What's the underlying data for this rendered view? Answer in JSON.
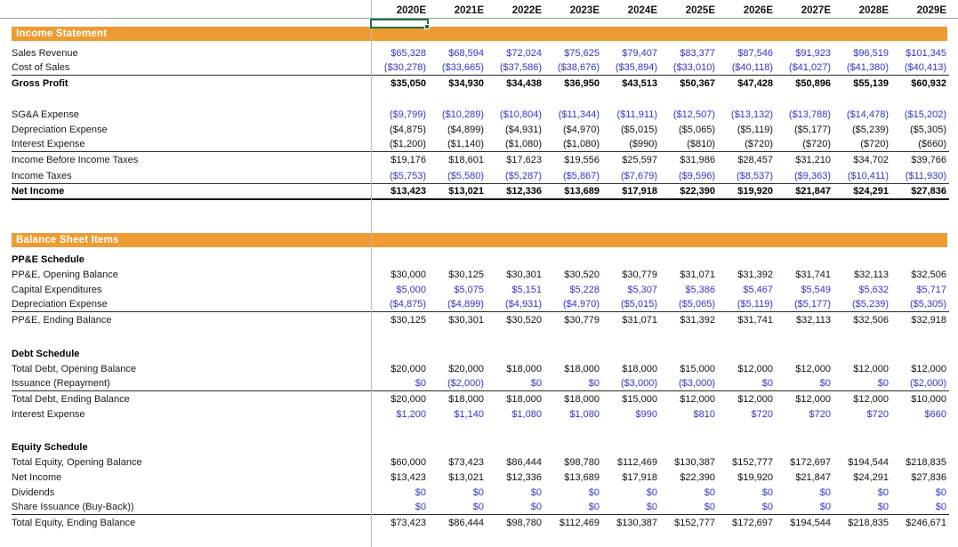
{
  "colors": {
    "section_header_bg": "#EE9B31",
    "input_text": "#3333CC",
    "calc_text": "#111111",
    "selection_border": "#1E7145",
    "gridline": "#BCBCBC"
  },
  "selection": {
    "column": "2020E"
  },
  "columns": [
    "2020E",
    "2021E",
    "2022E",
    "2023E",
    "2024E",
    "2025E",
    "2026E",
    "2027E",
    "2028E",
    "2029E"
  ],
  "sections": [
    {
      "title": "Income Statement",
      "margin_top": 0,
      "rows": [
        {
          "label": "Sales Revenue",
          "style": "input",
          "values": [
            "$65,328",
            "$68,594",
            "$72,024",
            "$75,625",
            "$79,407",
            "$83,377",
            "$87,546",
            "$91,923",
            "$96,519",
            "$101,345"
          ]
        },
        {
          "label": "Cost of Sales",
          "style": "input",
          "border": "bb",
          "values": [
            "($30,278)",
            "($33,665)",
            "($37,586)",
            "($38,676)",
            "($35,894)",
            "($33,010)",
            "($40,118)",
            "($41,027)",
            "($41,380)",
            "($40,413)"
          ]
        },
        {
          "label": "Gross Profit",
          "style": "total",
          "values": [
            "$35,050",
            "$34,930",
            "$34,438",
            "$36,950",
            "$43,513",
            "$50,367",
            "$47,428",
            "$50,896",
            "$55,139",
            "$60,932"
          ]
        },
        {
          "style": "blank",
          "h": 17
        },
        {
          "label": "SG&A Expense",
          "style": "input",
          "values": [
            "($9,799)",
            "($10,289)",
            "($10,804)",
            "($11,344)",
            "($11,911)",
            "($12,507)",
            "($13,132)",
            "($13,788)",
            "($14,478)",
            "($15,202)"
          ]
        },
        {
          "label": "Depreciation Expense",
          "style": "calc",
          "values": [
            "($4,875)",
            "($4,899)",
            "($4,931)",
            "($4,970)",
            "($5,015)",
            "($5,065)",
            "($5,119)",
            "($5,177)",
            "($5,239)",
            "($5,305)"
          ]
        },
        {
          "label": "Interest Expense",
          "style": "calc",
          "border": "bb",
          "values": [
            "($1,200)",
            "($1,140)",
            "($1,080)",
            "($1,080)",
            "($990)",
            "($810)",
            "($720)",
            "($720)",
            "($720)",
            "($660)"
          ]
        },
        {
          "label": "Income Before Income Taxes",
          "style": "calc",
          "h": 18,
          "values": [
            "$19,176",
            "$18,601",
            "$17,623",
            "$19,556",
            "$25,597",
            "$31,986",
            "$28,457",
            "$31,210",
            "$34,702",
            "$39,766"
          ]
        },
        {
          "label": "Income Taxes",
          "style": "input",
          "border": "bb",
          "h": 18,
          "values": [
            "($5,753)",
            "($5,580)",
            "($5,287)",
            "($5,867)",
            "($7,679)",
            "($9,596)",
            "($8,537)",
            "($9,363)",
            "($10,411)",
            "($11,930)"
          ]
        },
        {
          "label": "Net Income",
          "style": "total",
          "border": "bb2",
          "values": [
            "$13,423",
            "$13,021",
            "$12,336",
            "$13,689",
            "$17,918",
            "$22,390",
            "$19,920",
            "$21,847",
            "$24,291",
            "$27,836"
          ]
        }
      ]
    },
    {
      "title": "Balance Sheet Items",
      "margin_top": 37,
      "rows": [
        {
          "label": "PP&E Schedule",
          "style": "subheader",
          "values": []
        },
        {
          "label": "PP&E, Opening Balance",
          "style": "calc",
          "values": [
            "$30,000",
            "$30,125",
            "$30,301",
            "$30,520",
            "$30,779",
            "$31,071",
            "$31,392",
            "$31,741",
            "$32,113",
            "$32,506"
          ]
        },
        {
          "label": "Capital Expenditures",
          "style": "input",
          "values": [
            "$5,000",
            "$5,075",
            "$5,151",
            "$5,228",
            "$5,307",
            "$5,386",
            "$5,467",
            "$5,549",
            "$5,632",
            "$5,717"
          ]
        },
        {
          "label": "Depreciation Expense",
          "style": "input",
          "border": "bb",
          "values": [
            "($4,875)",
            "($4,899)",
            "($4,931)",
            "($4,970)",
            "($5,015)",
            "($5,065)",
            "($5,119)",
            "($5,177)",
            "($5,239)",
            "($5,305)"
          ]
        },
        {
          "label": "PP&E, Ending Balance",
          "style": "calc",
          "h": 18,
          "values": [
            "$30,125",
            "$30,301",
            "$30,520",
            "$30,779",
            "$31,071",
            "$31,392",
            "$31,741",
            "$32,113",
            "$32,506",
            "$32,918"
          ]
        },
        {
          "style": "blank",
          "h": 20
        },
        {
          "label": "Debt Schedule",
          "style": "subheader",
          "values": []
        },
        {
          "label": "Total Debt, Opening Balance",
          "style": "calc",
          "values": [
            "$20,000",
            "$20,000",
            "$18,000",
            "$18,000",
            "$18,000",
            "$15,000",
            "$12,000",
            "$12,000",
            "$12,000",
            "$12,000"
          ]
        },
        {
          "label": "Issuance (Repayment)",
          "style": "input",
          "border": "bb",
          "values": [
            "$0",
            "($2,000)",
            "$0",
            "$0",
            "($3,000)",
            "($3,000)",
            "$0",
            "$0",
            "$0",
            "($2,000)"
          ]
        },
        {
          "label": "Total Debt, Ending Balance",
          "style": "calc",
          "values": [
            "$20,000",
            "$18,000",
            "$18,000",
            "$18,000",
            "$15,000",
            "$12,000",
            "$12,000",
            "$12,000",
            "$12,000",
            "$10,000"
          ]
        },
        {
          "label": "Interest Expense",
          "style": "input",
          "values": [
            "$1,200",
            "$1,140",
            "$1,080",
            "$1,080",
            "$990",
            "$810",
            "$720",
            "$720",
            "$720",
            "$660"
          ]
        },
        {
          "style": "blank",
          "h": 20
        },
        {
          "label": "Equity Schedule",
          "style": "subheader",
          "values": []
        },
        {
          "label": "Total Equity, Opening Balance",
          "style": "calc",
          "values": [
            "$60,000",
            "$73,423",
            "$86,444",
            "$98,780",
            "$112,469",
            "$130,387",
            "$152,777",
            "$172,697",
            "$194,544",
            "$218,835"
          ]
        },
        {
          "label": "Net Income",
          "style": "calc",
          "values": [
            "$13,423",
            "$13,021",
            "$12,336",
            "$13,689",
            "$17,918",
            "$22,390",
            "$19,920",
            "$21,847",
            "$24,291",
            "$27,836"
          ]
        },
        {
          "label": "Dividends",
          "style": "input",
          "values": [
            "$0",
            "$0",
            "$0",
            "$0",
            "$0",
            "$0",
            "$0",
            "$0",
            "$0",
            "$0"
          ]
        },
        {
          "label": "Share Issuance (Buy-Back))",
          "style": "input",
          "border": "bb",
          "values": [
            "$0",
            "$0",
            "$0",
            "$0",
            "$0",
            "$0",
            "$0",
            "$0",
            "$0",
            "$0"
          ]
        },
        {
          "label": "Total Equity, Ending Balance",
          "style": "calc",
          "h": 18,
          "values": [
            "$73,423",
            "$86,444",
            "$98,780",
            "$112,469",
            "$130,387",
            "$152,777",
            "$172,697",
            "$194,544",
            "$218,835",
            "$246,671"
          ]
        }
      ]
    }
  ]
}
